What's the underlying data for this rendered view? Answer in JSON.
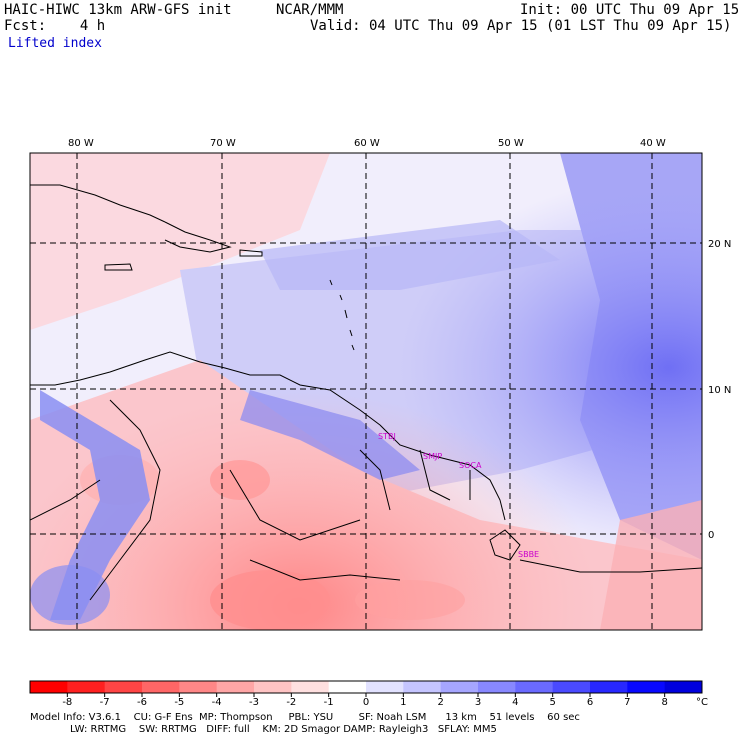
{
  "header": {
    "model": "HAIC-HIWC 13km ARW-GFS init",
    "org": "NCAR/MMM",
    "init": "Init: 00 UTC Thu 09 Apr 15",
    "fcst": "Fcst:    4 h",
    "valid": "Valid: 04 UTC Thu 09 Apr 15 (01 LST Thu 09 Apr 15)",
    "field": "Lifted index"
  },
  "map": {
    "lon_labels": [
      "80 W",
      "70 W",
      "60 W",
      "50 W",
      "40 W"
    ],
    "lat_labels": [
      "20 N",
      "10 N",
      "0"
    ],
    "stations": [
      "STBJ",
      "SMJP",
      "SOCA",
      "SBBE"
    ]
  },
  "colorbar": {
    "ticks": [
      "-8",
      "-7",
      "-6",
      "-5",
      "-4",
      "-3",
      "-2",
      "-1",
      "0",
      "1",
      "2",
      "3",
      "4",
      "5",
      "6",
      "7",
      "8"
    ],
    "unit": "°C",
    "colors": [
      "#ff0000",
      "#ff2020",
      "#ff4545",
      "#ff6666",
      "#ff8787",
      "#ffa6a6",
      "#ffc4c4",
      "#ffe0e0",
      "#ffffff",
      "#e2e2ff",
      "#c5c5ff",
      "#a6a6ff",
      "#8888ff",
      "#6a6aff",
      "#4a4aff",
      "#2828ff",
      "#0808ff",
      "#0000dd"
    ]
  },
  "model_info": {
    "line1": "Model Info: V3.6.1    CU: G-F Ens  MP: Thompson     PBL: YSU        SF: Noah LSM      13 km    51 levels    60 sec",
    "line2": "LW: RRTMG    SW: RRTMG   DIFF: full    KM: 2D Smagor DAMP: Rayleigh3   SFLAY: MM5"
  }
}
